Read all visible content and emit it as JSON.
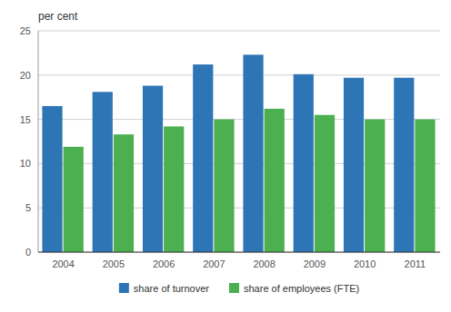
{
  "chart_data": {
    "type": "bar",
    "y_label": "per cent",
    "categories": [
      "2004",
      "2005",
      "2006",
      "2007",
      "2008",
      "2009",
      "2010",
      "2011"
    ],
    "series": [
      {
        "name": "share of turnover",
        "color": "#2E75B6",
        "values": [
          16.5,
          18.1,
          18.8,
          21.2,
          22.3,
          20.1,
          19.7,
          19.7
        ]
      },
      {
        "name": "share of employees (FTE)",
        "color": "#4CAF50",
        "values": [
          11.9,
          13.3,
          14.2,
          15.0,
          16.2,
          15.5,
          15.0,
          15.0
        ]
      }
    ],
    "ylim": [
      0,
      25
    ],
    "yticks": [
      0,
      5,
      10,
      15,
      20,
      25
    ],
    "grid": true,
    "legend": "bottom"
  }
}
